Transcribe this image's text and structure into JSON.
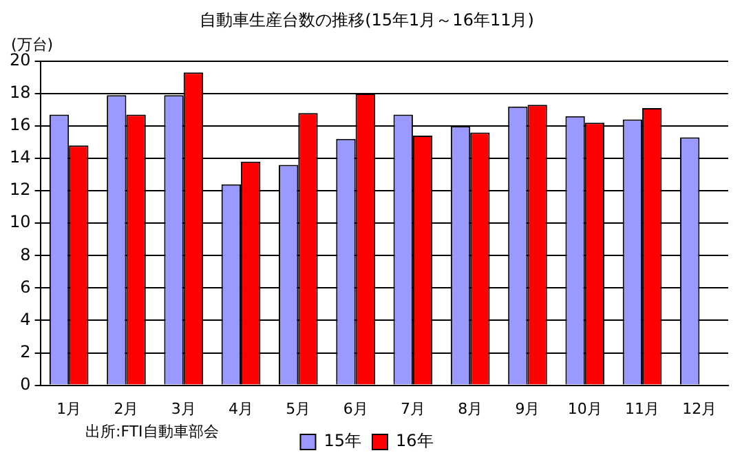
{
  "chart_data": {
    "type": "bar",
    "title": "自動車生産台数の推移(15年1月～16年11月)",
    "ylabel": "(万台)",
    "categories": [
      "1月",
      "2月",
      "3月",
      "4月",
      "5月",
      "6月",
      "7月",
      "8月",
      "9月",
      "10月",
      "11月",
      "12月"
    ],
    "series": [
      {
        "name": "15年",
        "color": "#9999ff",
        "values": [
          16.7,
          17.9,
          17.9,
          12.4,
          13.6,
          15.2,
          16.7,
          16.0,
          17.2,
          16.6,
          16.4,
          15.3
        ]
      },
      {
        "name": "16年",
        "color": "#ff0000",
        "values": [
          14.8,
          16.7,
          19.3,
          13.8,
          16.8,
          18.0,
          15.4,
          15.6,
          17.3,
          16.2,
          17.1,
          null
        ]
      }
    ],
    "ylim": [
      0,
      20
    ],
    "yticks": [
      0,
      2,
      4,
      6,
      8,
      10,
      12,
      14,
      16,
      18,
      20
    ],
    "grid": "y",
    "legend": "bottom",
    "annotations": [
      "出所:FTI自動車部会"
    ]
  }
}
